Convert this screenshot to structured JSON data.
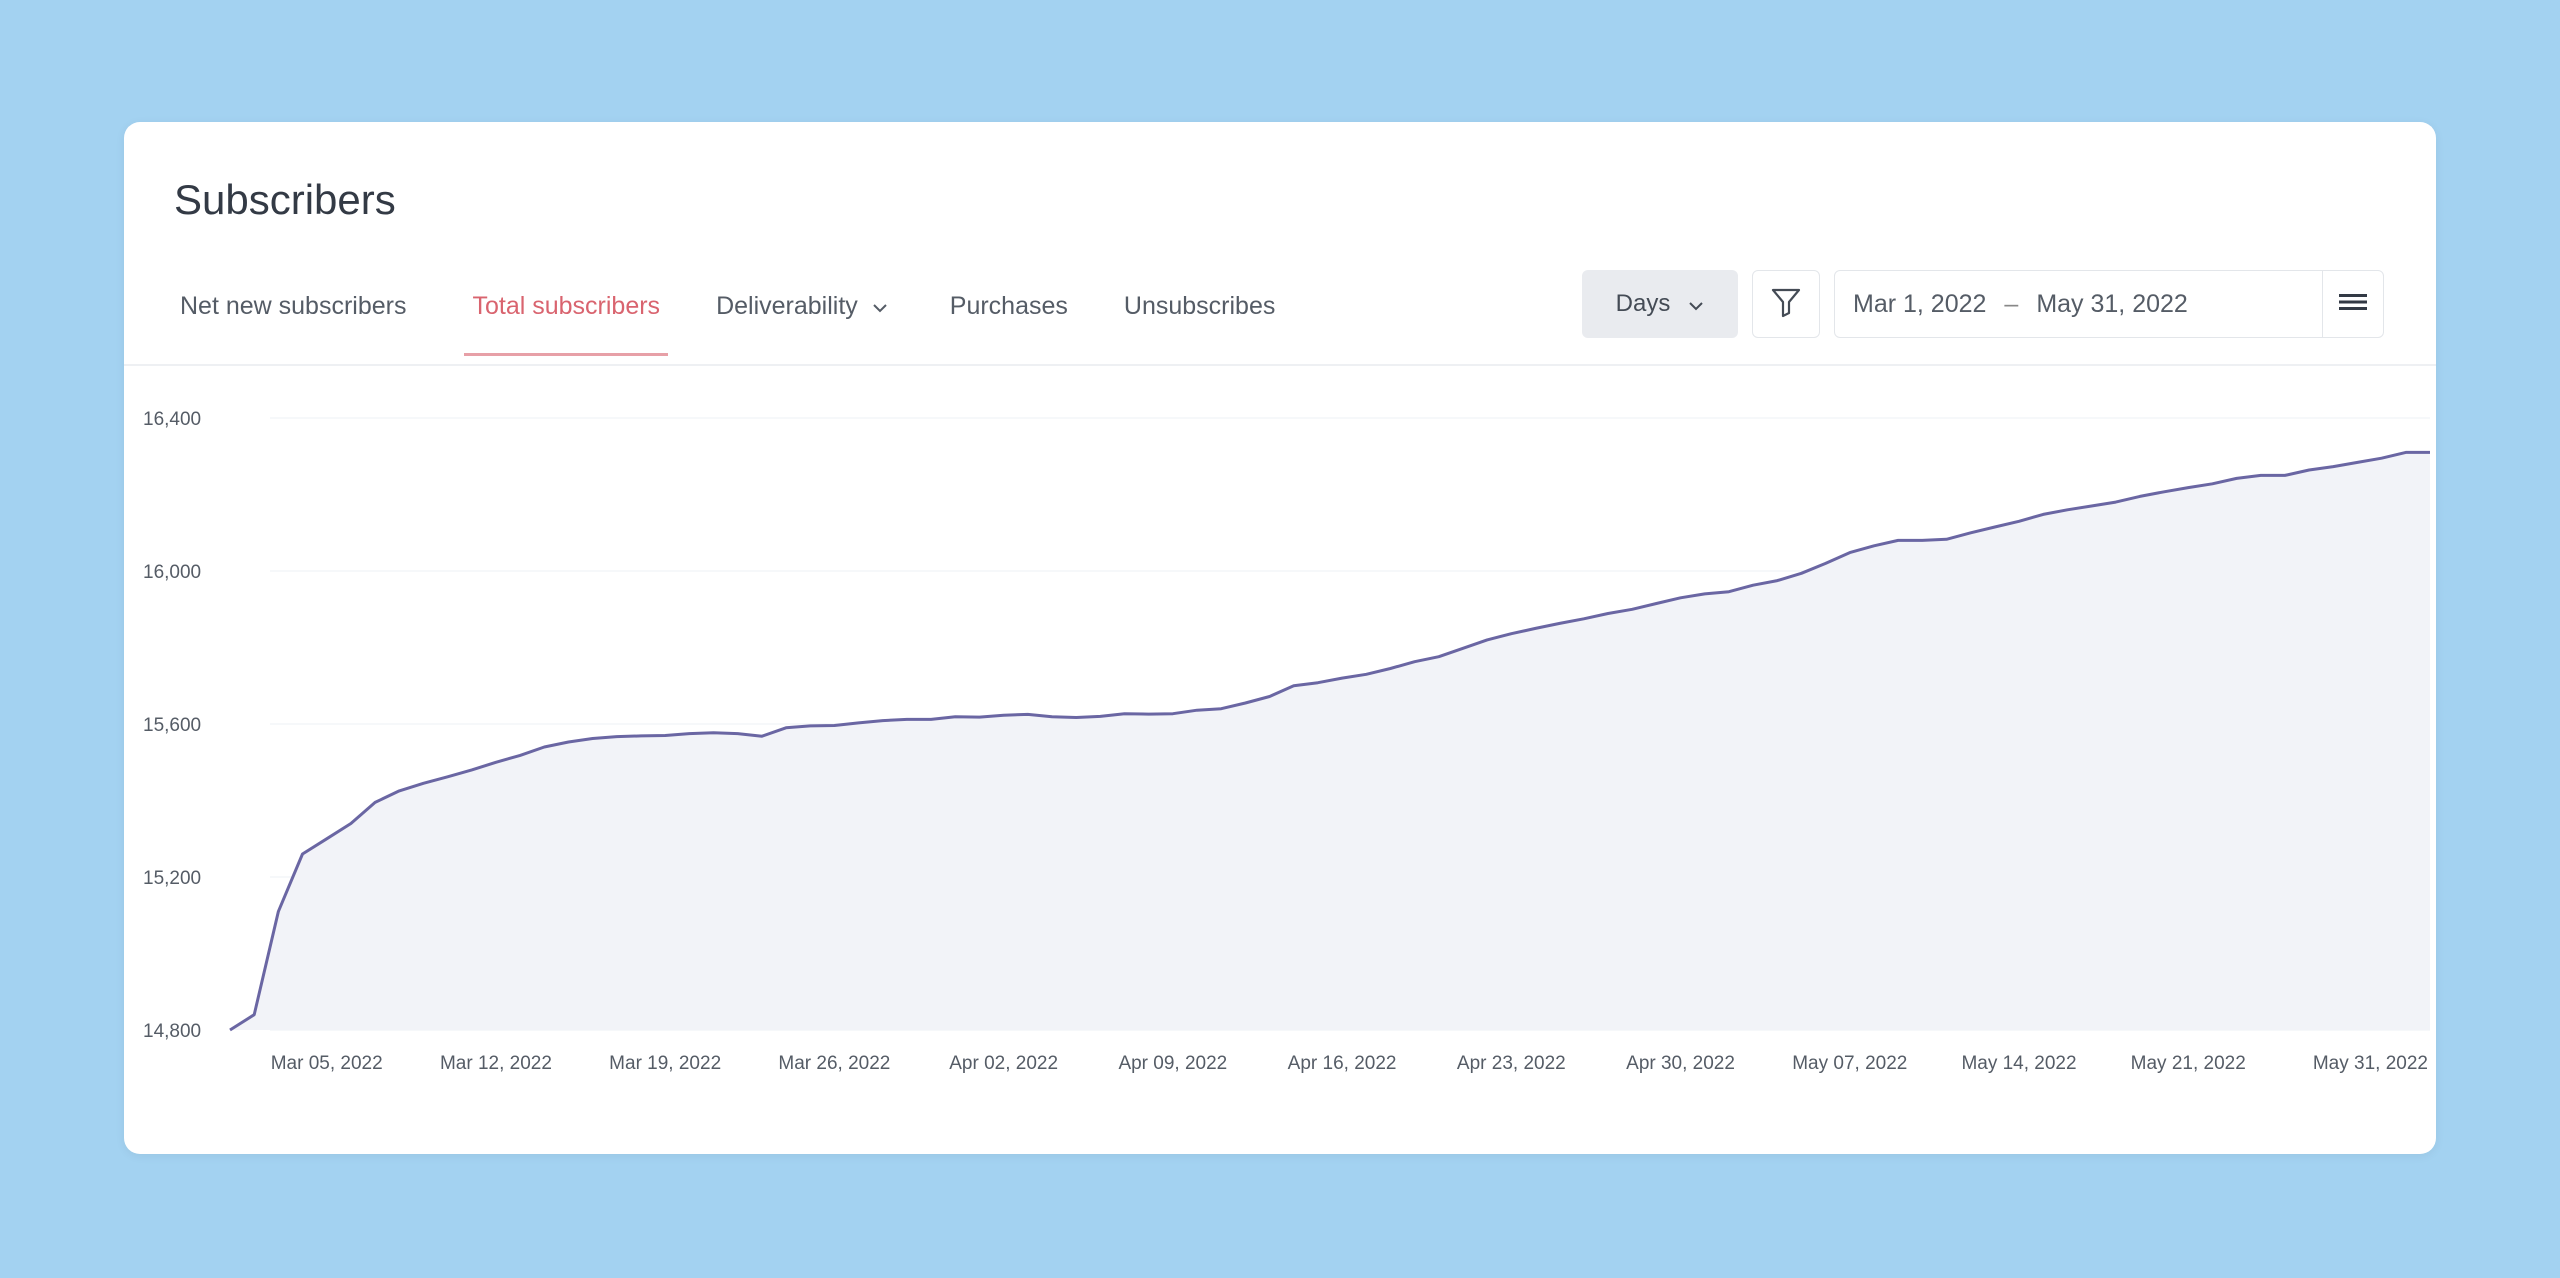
{
  "header": {
    "title": "Subscribers"
  },
  "tabs": [
    {
      "label": "Net new subscribers",
      "active": false
    },
    {
      "label": "Total subscribers",
      "active": true
    },
    {
      "label": "Deliverability",
      "active": false,
      "dropdown": true
    },
    {
      "label": "Purchases",
      "active": false
    },
    {
      "label": "Unsubscribes",
      "active": false
    }
  ],
  "controls": {
    "granularity": "Days",
    "date_start": "Mar 1, 2022",
    "date_separator": "–",
    "date_end": "May 31, 2022",
    "icons": {
      "filter": "filter-icon",
      "menu": "hamburger-menu-icon",
      "dropdown": "chevron-down-icon"
    }
  },
  "colors": {
    "accent": "#d9646f",
    "line": "#6a66a3",
    "area": "#f2f3f8",
    "background": "#a3d2f1"
  },
  "chart_data": {
    "type": "area",
    "title": "",
    "xlabel": "",
    "ylabel": "",
    "ylim": [
      14800,
      16400
    ],
    "yticks": [
      "16,400",
      "16,000",
      "15,600",
      "15,200",
      "14,800"
    ],
    "ytick_values": [
      16400,
      16000,
      15600,
      15200,
      14800
    ],
    "xticks": [
      {
        "date": "2022-03-05",
        "label": "Mar 05, 2022"
      },
      {
        "date": "2022-03-12",
        "label": "Mar 12, 2022"
      },
      {
        "date": "2022-03-19",
        "label": "Mar 19, 2022"
      },
      {
        "date": "2022-03-26",
        "label": "Mar 26, 2022"
      },
      {
        "date": "2022-04-02",
        "label": "Apr 02, 2022"
      },
      {
        "date": "2022-04-09",
        "label": "Apr 09, 2022"
      },
      {
        "date": "2022-04-16",
        "label": "Apr 16, 2022"
      },
      {
        "date": "2022-04-23",
        "label": "Apr 23, 2022"
      },
      {
        "date": "2022-04-30",
        "label": "Apr 30, 2022"
      },
      {
        "date": "2022-05-07",
        "label": "May 07, 2022"
      },
      {
        "date": "2022-05-14",
        "label": "May 14, 2022"
      },
      {
        "date": "2022-05-21",
        "label": "May 21, 2022"
      },
      {
        "date": "2022-05-31",
        "label": "May 31, 2022"
      }
    ],
    "grid": true,
    "series": [
      {
        "x": [
          "2022-03-01",
          "2022-03-02",
          "2022-03-03",
          "2022-03-04",
          "2022-03-05",
          "2022-03-06",
          "2022-03-07",
          "2022-03-08",
          "2022-03-09",
          "2022-03-10",
          "2022-03-11",
          "2022-03-12",
          "2022-03-13",
          "2022-03-14",
          "2022-03-15",
          "2022-03-16",
          "2022-03-17",
          "2022-03-18",
          "2022-03-19",
          "2022-03-20",
          "2022-03-21",
          "2022-03-22",
          "2022-03-23",
          "2022-03-24",
          "2022-03-25",
          "2022-03-26",
          "2022-03-27",
          "2022-03-28",
          "2022-03-29",
          "2022-03-30",
          "2022-03-31",
          "2022-04-01",
          "2022-04-02",
          "2022-04-03",
          "2022-04-04",
          "2022-04-05",
          "2022-04-06",
          "2022-04-07",
          "2022-04-08",
          "2022-04-09",
          "2022-04-10",
          "2022-04-11",
          "2022-04-12",
          "2022-04-13",
          "2022-04-14",
          "2022-04-15",
          "2022-04-16",
          "2022-04-17",
          "2022-04-18",
          "2022-04-19",
          "2022-04-20",
          "2022-04-21",
          "2022-04-22",
          "2022-04-23",
          "2022-04-24",
          "2022-04-25",
          "2022-04-26",
          "2022-04-27",
          "2022-04-28",
          "2022-04-29",
          "2022-04-30",
          "2022-05-01",
          "2022-05-02",
          "2022-05-03",
          "2022-05-04",
          "2022-05-05",
          "2022-05-06",
          "2022-05-07",
          "2022-05-08",
          "2022-05-09",
          "2022-05-10",
          "2022-05-11",
          "2022-05-12",
          "2022-05-13",
          "2022-05-14",
          "2022-05-15",
          "2022-05-16",
          "2022-05-17",
          "2022-05-18",
          "2022-05-19",
          "2022-05-20",
          "2022-05-21",
          "2022-05-22",
          "2022-05-23",
          "2022-05-24",
          "2022-05-25",
          "2022-05-26",
          "2022-05-27",
          "2022-05-28",
          "2022-05-29",
          "2022-05-30",
          "2022-05-31"
        ],
        "values": [
          14800,
          14840,
          15110,
          15260,
          15300,
          15340,
          15395,
          15425,
          15445,
          15462,
          15480,
          15500,
          15518,
          15540,
          15553,
          15562,
          15567,
          15569,
          15570,
          15575,
          15577,
          15575,
          15568,
          15590,
          15595,
          15596,
          15603,
          15609,
          15612,
          15612,
          15619,
          15618,
          15623,
          15625,
          15619,
          15617,
          15620,
          15627,
          15626,
          15627,
          15636,
          15640,
          15655,
          15672,
          15700,
          15708,
          15720,
          15730,
          15745,
          15763,
          15776,
          15798,
          15820,
          15836,
          15850,
          15863,
          15875,
          15889,
          15900,
          15915,
          15930,
          15940,
          15946,
          15963,
          15975,
          15994,
          16020,
          16048,
          16066,
          16080,
          16080,
          16083,
          16100,
          16115,
          16130,
          16148,
          16160,
          16170,
          16180,
          16195,
          16207,
          16218,
          16228,
          16242,
          16250,
          16250,
          16264,
          16273,
          16284,
          16295,
          16310,
          16310
        ]
      }
    ]
  }
}
